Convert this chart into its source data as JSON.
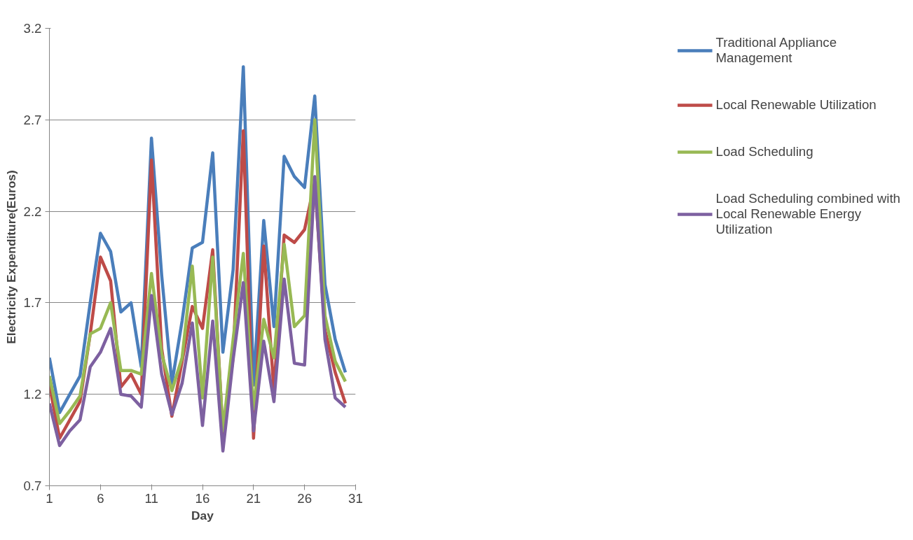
{
  "chart_data": {
    "type": "line",
    "xlabel": "Day",
    "ylabel": "Electricity Expenditure(Euros)",
    "x": [
      1,
      2,
      3,
      4,
      5,
      6,
      7,
      8,
      9,
      10,
      11,
      12,
      13,
      14,
      15,
      16,
      17,
      18,
      19,
      20,
      21,
      22,
      23,
      24,
      25,
      26,
      27,
      28,
      29,
      30
    ],
    "xlim": [
      1,
      31
    ],
    "xticks": [
      1,
      6,
      11,
      16,
      21,
      26,
      31
    ],
    "ylim": [
      0.7,
      3.2
    ],
    "yticks": [
      0.7,
      1.2,
      1.7,
      2.2,
      2.7,
      3.2
    ],
    "grid": "y",
    "legend": "right",
    "marker": "none",
    "line_style": "solid",
    "series": [
      {
        "name": "Traditional Appliance Management",
        "color": "#4a7ebb",
        "values": [
          1.4,
          1.1,
          1.2,
          1.3,
          1.7,
          2.08,
          1.98,
          1.65,
          1.7,
          1.35,
          2.6,
          1.85,
          1.26,
          1.6,
          2.0,
          2.03,
          2.52,
          1.43,
          1.88,
          2.99,
          1.25,
          2.15,
          1.57,
          2.5,
          2.39,
          2.33,
          2.83,
          1.8,
          1.5,
          1.32
        ]
      },
      {
        "name": "Local Renewable Utilization",
        "color": "#be4b48",
        "values": [
          1.25,
          0.96,
          1.06,
          1.16,
          1.53,
          1.95,
          1.82,
          1.24,
          1.31,
          1.2,
          2.48,
          1.45,
          1.08,
          1.38,
          1.68,
          1.56,
          1.99,
          0.99,
          1.4,
          2.64,
          0.96,
          2.01,
          1.22,
          2.07,
          2.03,
          2.1,
          2.36,
          1.55,
          1.32,
          1.15
        ]
      },
      {
        "name": "Load Scheduling",
        "color": "#98b954",
        "values": [
          1.3,
          1.04,
          1.11,
          1.19,
          1.53,
          1.56,
          1.7,
          1.33,
          1.33,
          1.31,
          1.86,
          1.42,
          1.22,
          1.4,
          1.9,
          1.18,
          1.95,
          1.0,
          1.5,
          1.97,
          1.12,
          1.61,
          1.4,
          2.02,
          1.57,
          1.63,
          2.7,
          1.63,
          1.38,
          1.27
        ]
      },
      {
        "name": "Load Scheduling combined with Local Renewable Energy Utilization",
        "color": "#7d60a0",
        "values": [
          1.15,
          0.92,
          1.0,
          1.06,
          1.35,
          1.43,
          1.56,
          1.2,
          1.19,
          1.13,
          1.74,
          1.31,
          1.09,
          1.26,
          1.59,
          1.03,
          1.6,
          0.89,
          1.39,
          1.81,
          1.0,
          1.49,
          1.16,
          1.83,
          1.37,
          1.36,
          2.39,
          1.5,
          1.18,
          1.13
        ]
      }
    ]
  }
}
